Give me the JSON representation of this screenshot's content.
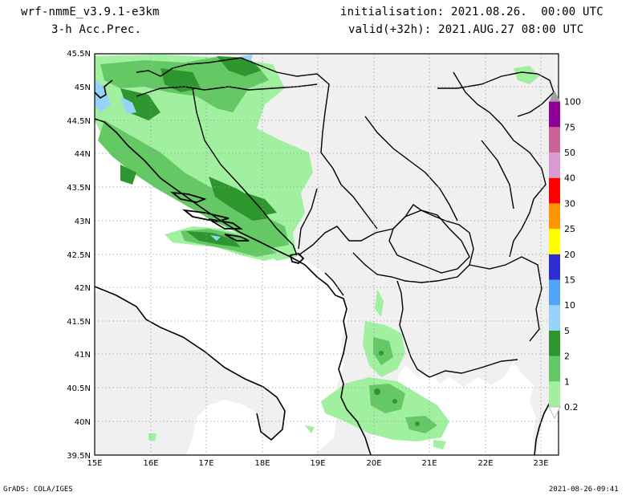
{
  "header": {
    "model": "wrf-nmmE_v3.9.1-e3km",
    "field": "3-h Acc.Prec.",
    "init": "initialisation: 2021.08.26.  00:00 UTC",
    "valid": "valid(+32h): 2021.AUG.27 08:00 UTC"
  },
  "map": {
    "lat_labels": [
      "45.5N",
      "45N",
      "44.5N",
      "44N",
      "43.5N",
      "43N",
      "42.5N",
      "42N",
      "41.5N",
      "41N",
      "40.5N",
      "40N",
      "39.5N"
    ],
    "lon_labels": [
      "15E",
      "16E",
      "17E",
      "18E",
      "19E",
      "20E",
      "21E",
      "22E",
      "23E"
    ],
    "lat_range": [
      39.5,
      45.5
    ],
    "lon_range": [
      15,
      23.3
    ],
    "land_color": "#f0f0f0",
    "sea_color": "#ffffff",
    "grid": "dotted"
  },
  "colorbar": {
    "labels": [
      "0.2",
      "1",
      "2",
      "5",
      "10",
      "15",
      "20",
      "25",
      "30",
      "40",
      "50",
      "75",
      "100"
    ],
    "colors": [
      "#a0f0a0",
      "#64c864",
      "#2e962e",
      "#96d2fa",
      "#50a5f5",
      "#2d2dd2",
      "#ffff00",
      "#ff9600",
      "#ff0000",
      "#d79bd2",
      "#c86496",
      "#8c0096",
      "#a0a0a0"
    ]
  },
  "footer": {
    "left": "GrADS: COLA/IGES",
    "right": "2021-08-26-09:41"
  }
}
